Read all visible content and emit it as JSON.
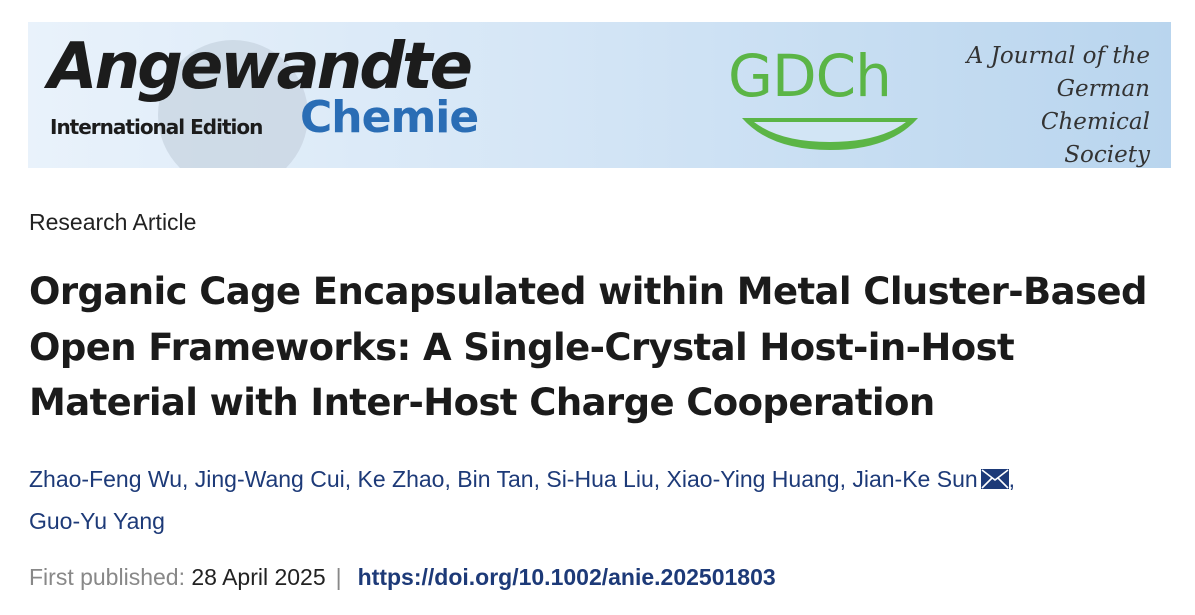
{
  "banner": {
    "journal_name": "Angewandte",
    "journal_edition": "International Edition",
    "journal_subtitle": "Chemie",
    "society_logo": "GDCh",
    "society_tagline": "A Journal of the German Chemical Society",
    "colors": {
      "chemie_blue": "#2a6db5",
      "gdch_green": "#5bb546"
    }
  },
  "article": {
    "type": "Research Article",
    "title_lines": [
      "Organic Cage Encapsulated within Metal Cluster-Based",
      "Open Frameworks: A Single-Crystal Host-in-Host",
      "Material with Inter-Host Charge Cooperation"
    ],
    "authors": [
      "Zhao-Feng Wu",
      "Jing-Wang Cui",
      "Ke Zhao",
      "Bin Tan",
      "Si-Hua Liu",
      "Xiao-Ying Huang",
      "Jian-Ke Sun",
      "Guo-Yu Yang"
    ],
    "corresponding_icon": "envelope-icon",
    "first_published_label": "First published:",
    "first_published_date": "28 April 2025",
    "separator": "|",
    "doi": "https://doi.org/10.1002/anie.202501803"
  }
}
